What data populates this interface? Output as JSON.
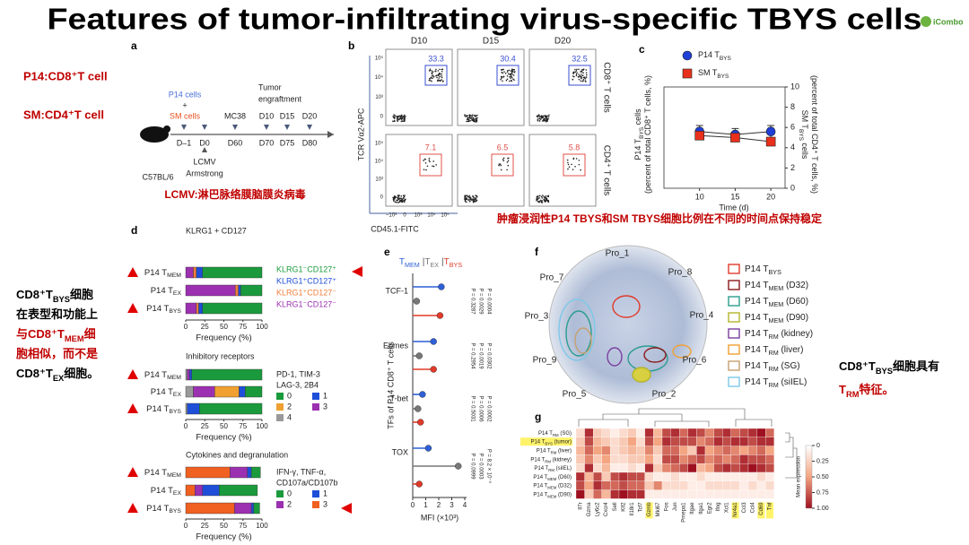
{
  "title": "Features of tumor-infiltrating virus-specific TBYS cells",
  "logo": "iCombo",
  "notes": {
    "p14": "P14:CD8⁺T cell",
    "sm": "SM:CD4⁺T cell",
    "left": [
      {
        "color": "#000000",
        "parts": [
          {
            "t": "CD8⁺T"
          },
          {
            "s": "BYS"
          },
          {
            "t": "细胞"
          }
        ]
      },
      {
        "color": "#000000",
        "parts": [
          {
            "t": "在表型和功能上"
          }
        ]
      },
      {
        "color": "#c00000",
        "parts": [
          {
            "t": "与CD8⁺T"
          },
          {
            "s": "MEM"
          },
          {
            "t": "细"
          }
        ]
      },
      {
        "color": "#c00000",
        "parts": [
          {
            "t": "胞相似，而不是"
          }
        ]
      },
      {
        "color": "#000000",
        "parts": [
          {
            "t": "CD8⁺T"
          },
          {
            "s": "EX"
          },
          {
            "t": "细胞。"
          }
        ]
      }
    ],
    "right": [
      {
        "color": "#000000",
        "parts": [
          {
            "t": "CD8⁺T"
          },
          {
            "s": "BYS"
          },
          {
            "t": "细胞具有"
          }
        ]
      },
      {
        "color": "#c00000",
        "parts": [
          {
            "t": "T"
          },
          {
            "s": "RM"
          },
          {
            "t": "特征。"
          }
        ]
      }
    ]
  },
  "a": {
    "label": "a",
    "mouse": "C57BL/6",
    "p14": "P14 cells",
    "plus": "+",
    "sm": "SM cells",
    "mc38": "MC38",
    "tumor": [
      "Tumor",
      "engraftment"
    ],
    "days": [
      "D–1",
      "D0",
      "D60",
      "D70",
      "D75",
      "D80"
    ],
    "tumor_days": [
      "D10",
      "D15",
      "D20"
    ],
    "lcmv": [
      "LCMV",
      "Armstrong"
    ],
    "caption": "LCMV:淋巴脉络膜脑膜炎病毒"
  },
  "b": {
    "label": "b",
    "columns": [
      "D10",
      "D15",
      "D20"
    ],
    "rows": [
      "CD8⁺ T cells",
      "CD4⁺ T cells"
    ],
    "percents": [
      [
        "33.3",
        "30.4",
        "32.5"
      ],
      [
        "7.1",
        "6.5",
        "5.8"
      ]
    ],
    "yticks": [
      "10⁵",
      "10⁴",
      "10³",
      "0"
    ],
    "xticks": [
      "−10³",
      "0",
      "10³",
      "10⁴",
      "10⁵"
    ],
    "ylabel": "TCR Vα2-APC",
    "xlabel": "CD45.1-FITC",
    "caption": "肿瘤浸润性P14 TBYS和SM TBYS细胞比例在不同的时间点保持稳定"
  },
  "c": {
    "label": "c",
    "type": "line",
    "x": [
      10,
      15,
      20
    ],
    "xlim": [
      5,
      22
    ],
    "xticks": [
      10,
      15,
      20
    ],
    "xlabel": "Time (d)",
    "ylabel": [
      [
        {
          "t": "P14 T"
        },
        {
          "s": "BYS"
        },
        {
          "t": " cells"
        }
      ],
      [
        {
          "t": "(percent of total CD8⁺ T cells, %)"
        }
      ]
    ],
    "y2label": [
      [
        {
          "t": "SM T"
        },
        {
          "s": "BYS"
        },
        {
          "t": " cells"
        }
      ],
      [
        {
          "t": "(percent of total CD4⁺ T cells, %)"
        }
      ]
    ],
    "ylim": [
      0,
      10
    ],
    "y2lim": [
      0,
      10
    ],
    "y2ticks": [
      0,
      2,
      4,
      6,
      8,
      10
    ],
    "series": [
      {
        "name": [
          {
            "t": "P14 T"
          },
          {
            "s": "BYS"
          }
        ],
        "color": "#1f3fd6",
        "marker": "circle",
        "values": [
          5.6,
          5.3,
          5.6
        ],
        "errors": [
          0.6,
          0.6,
          0.6
        ]
      },
      {
        "name": [
          {
            "t": "SM T"
          },
          {
            "s": "BYS"
          }
        ],
        "color": "#e8301c",
        "marker": "square",
        "axis": "y2",
        "values": [
          5.2,
          5.0,
          4.6
        ],
        "errors": [
          0.4,
          0.4,
          0.4
        ]
      }
    ]
  },
  "d": {
    "label": "d",
    "xlim": [
      0,
      100
    ],
    "xticks": [
      0,
      25,
      50,
      75,
      100
    ],
    "xlabel": "Frequency (%)",
    "marked_rows": [
      0,
      2
    ],
    "rows": [
      [
        {
          "t": "P14 T"
        },
        {
          "s": "MEM"
        }
      ],
      [
        {
          "t": "P14 T"
        },
        {
          "s": "EX"
        }
      ],
      [
        {
          "t": "P14 T"
        },
        {
          "s": "BYS"
        }
      ]
    ],
    "groups": [
      {
        "title": "KLRG1 + CD127",
        "subtitle": [],
        "legend_columns": 1,
        "series": [
          {
            "name": "KLRG1⁻CD127⁺",
            "color": "#1a9a3c",
            "values": [
              78,
              28,
              78
            ]
          },
          {
            "name": "KLRG1⁺CD127⁺",
            "color": "#1f4fd8",
            "values": [
              8,
              3,
              5
            ]
          },
          {
            "name": "KLRG1⁺CD127⁻",
            "color": "#f07f3c",
            "values": [
              4,
              4,
              3
            ]
          },
          {
            "name": "KLRG1⁻CD127⁻",
            "color": "#9b30b0",
            "values": [
              10,
              65,
              14
            ]
          }
        ]
      },
      {
        "title": "Inhibitory receptors",
        "subtitle": [
          "PD-1, TIM-3",
          "LAG-3, 2B4"
        ],
        "legend_columns": 2,
        "series": [
          {
            "name": "0",
            "color": "#1a9a3c",
            "values": [
              92,
              22,
              82
            ]
          },
          {
            "name": "1",
            "color": "#1f4fd8",
            "values": [
              3,
              8,
              16
            ]
          },
          {
            "name": "2",
            "color": "#f0a030",
            "values": [
              0,
              32,
              0
            ]
          },
          {
            "name": "3",
            "color": "#9b30b0",
            "values": [
              3,
              28,
              0
            ]
          },
          {
            "name": "4",
            "color": "#999999",
            "values": [
              2,
              10,
              2
            ]
          }
        ]
      },
      {
        "title": "Cytokines and degranulation",
        "subtitle": [
          "IFN-γ, TNF-α,",
          "CD107a/CD107b"
        ],
        "legend_columns": 2,
        "series": [
          {
            "name": "0",
            "color": "#1a9a3c",
            "values": [
              12,
              50,
              8
            ]
          },
          {
            "name": "1",
            "color": "#1f4fd8",
            "values": [
              5,
              22,
              3
            ]
          },
          {
            "name": "2",
            "color": "#9b30b0",
            "values": [
              23,
              10,
              22
            ]
          },
          {
            "name": "3",
            "color": "#f06020",
            "values": [
              58,
              12,
              64
            ]
          }
        ]
      }
    ]
  },
  "e": {
    "label": "e",
    "sep": "|",
    "factors": [
      "TCF-1",
      "Eomes",
      "T-bet",
      "TOX"
    ],
    "xlim": [
      0,
      4
    ],
    "xticks": [
      0,
      1,
      2,
      3,
      4
    ],
    "xlabel": "MFI (×10³)",
    "ylabel": "TFs of P14 CD8⁺ T cells",
    "series": [
      {
        "name": [
          {
            "t": "T"
          },
          {
            "s": "MEM"
          }
        ],
        "color": "#2f5fd6",
        "values": [
          2.2,
          1.6,
          0.75,
          1.2
        ]
      },
      {
        "name": [
          {
            "t": "T"
          },
          {
            "s": "EX"
          }
        ],
        "color": "#777777",
        "values": [
          0.3,
          0.5,
          0.4,
          3.5
        ]
      },
      {
        "name": [
          {
            "t": "T"
          },
          {
            "s": "BYS"
          }
        ],
        "color": "#e03a2a",
        "values": [
          2.1,
          1.6,
          0.6,
          0.5
        ]
      }
    ],
    "pvalues": [
      [
        "P = 0.3287",
        "P = 0.0029",
        "P = 0.0004"
      ],
      [
        "P = 0.2954",
        "P = 0.0019",
        "P = 0.0302"
      ],
      [
        "P = 0.5031",
        "P = 0.0006",
        "P = 0.0002"
      ],
      [
        "P = 0.0999",
        "P = 0.0003",
        "P = 8.2 × 10⁻⁵"
      ]
    ]
  },
  "f": {
    "label": "f",
    "programs": [
      "Pro_1",
      "Pro_2",
      "Pro_3",
      "Pro_4",
      "Pro_5",
      "Pro_6",
      "Pro_7",
      "Pro_8",
      "Pro_9"
    ],
    "legend": [
      {
        "name": [
          {
            "t": "P14 T"
          },
          {
            "s": "BYS"
          }
        ],
        "color": "#e03a2a"
      },
      {
        "name": [
          {
            "t": "P14 T"
          },
          {
            "s": "MEM"
          },
          {
            "t": " (D32)"
          }
        ],
        "color": "#8b1a1a"
      },
      {
        "name": [
          {
            "t": "P14 T"
          },
          {
            "s": "MEM"
          },
          {
            "t": " (D60)"
          }
        ],
        "color": "#2a9d8f"
      },
      {
        "name": [
          {
            "t": "P14 T"
          },
          {
            "s": "MEM"
          },
          {
            "t": " (D90)"
          }
        ],
        "color": "#b5b52a"
      },
      {
        "name": [
          {
            "t": "P14 T"
          },
          {
            "s": "RM"
          },
          {
            "t": " (kidney)"
          }
        ],
        "color": "#7b3fa0"
      },
      {
        "name": [
          {
            "t": "P14 T"
          },
          {
            "s": "RM"
          },
          {
            "t": " (liver)"
          }
        ],
        "color": "#f0a030"
      },
      {
        "name": [
          {
            "t": "P14 T"
          },
          {
            "s": "RM"
          },
          {
            "t": " (SG)"
          }
        ],
        "color": "#c8a070"
      },
      {
        "name": [
          {
            "t": "P14 T"
          },
          {
            "s": "RM"
          },
          {
            "t": " (siIEL)"
          }
        ],
        "color": "#7ec8e8"
      }
    ]
  },
  "g": {
    "label": "g",
    "rows": [
      [
        {
          "t": "P14 T"
        },
        {
          "s": "RM"
        },
        {
          "t": " (SG)"
        }
      ],
      [
        {
          "t": "P14 T"
        },
        {
          "s": "BYS"
        },
        {
          "t": " (tumor)"
        }
      ],
      [
        {
          "t": "P14 T"
        },
        {
          "s": "RM"
        },
        {
          "t": " (liver)"
        }
      ],
      [
        {
          "t": "P14 T"
        },
        {
          "s": "RM"
        },
        {
          "t": " (kidney)"
        }
      ],
      [
        {
          "t": "P14 T"
        },
        {
          "s": "RM"
        },
        {
          "t": " (siIEL)"
        }
      ],
      [
        {
          "t": "P14 T"
        },
        {
          "s": "MEM"
        },
        {
          "t": " (D60)"
        }
      ],
      [
        {
          "t": "P14 T"
        },
        {
          "s": "MEM"
        },
        {
          "t": " (D32)"
        }
      ],
      [
        {
          "t": "P14 T"
        },
        {
          "s": "MEM"
        },
        {
          "t": " (D90)"
        }
      ]
    ],
    "genes": [
      "Il7r",
      "Gzma",
      "Ly6c2",
      "Cxcr4",
      "Sell",
      "Klf2",
      "Il18r1",
      "Tcf7",
      "Gzmb",
      "Mki67",
      "Fos",
      "Jun",
      "Pmepa1",
      "Itgae",
      "Itga1",
      "Egr2",
      "Ifng",
      "Xcl1",
      "Nr4a1",
      "Ccl3",
      "Ccl4",
      "Cd69",
      "Tnf"
    ],
    "highlight_rows": [
      1
    ],
    "highlight_genes": [
      8,
      18,
      21,
      22
    ],
    "values": [
      [
        0.2,
        0.9,
        0.3,
        0.2,
        0.1,
        0.2,
        0.3,
        0.1,
        0.9,
        0.4,
        0.8,
        0.9,
        0.7,
        0.9,
        0.8,
        0.6,
        0.8,
        0.9,
        0.7,
        0.8,
        0.9,
        1.0,
        0.7
      ],
      [
        0.3,
        0.8,
        0.4,
        0.3,
        0.2,
        0.3,
        0.5,
        0.2,
        0.8,
        0.5,
        0.9,
        0.8,
        0.8,
        0.8,
        0.6,
        0.7,
        0.9,
        0.8,
        0.9,
        0.9,
        0.8,
        0.9,
        0.9
      ],
      [
        0.4,
        0.7,
        0.5,
        0.6,
        0.2,
        0.3,
        0.4,
        0.3,
        0.6,
        0.3,
        0.7,
        0.7,
        0.5,
        0.3,
        0.9,
        0.5,
        0.6,
        0.7,
        0.6,
        0.5,
        0.6,
        0.7,
        0.5
      ],
      [
        0.3,
        0.6,
        0.3,
        0.5,
        0.2,
        0.2,
        0.3,
        0.3,
        0.5,
        0.2,
        0.8,
        0.8,
        0.6,
        0.7,
        0.8,
        0.6,
        0.7,
        0.6,
        0.7,
        0.9,
        0.8,
        0.8,
        0.7
      ],
      [
        0.2,
        0.9,
        0.2,
        0.4,
        0.1,
        0.1,
        0.2,
        0.1,
        0.9,
        0.3,
        0.6,
        0.7,
        0.8,
        1.0,
        0.4,
        0.5,
        0.8,
        0.9,
        0.8,
        0.9,
        1.0,
        0.9,
        0.8
      ],
      [
        0.9,
        0.4,
        0.8,
        0.3,
        0.8,
        0.9,
        0.8,
        0.8,
        0.2,
        0.1,
        0.1,
        0.2,
        0.1,
        0.1,
        0.2,
        0.1,
        0.1,
        0.1,
        0.1,
        0.1,
        0.1,
        0.2,
        0.1
      ],
      [
        0.8,
        0.5,
        0.9,
        0.7,
        0.7,
        0.8,
        0.7,
        0.7,
        0.3,
        0.6,
        0.2,
        0.2,
        0.2,
        0.1,
        0.1,
        0.2,
        0.2,
        0.2,
        0.2,
        0.1,
        0.2,
        0.1,
        0.2
      ],
      [
        1.0,
        0.3,
        0.7,
        0.4,
        0.9,
        1.0,
        0.9,
        0.9,
        0.1,
        0.1,
        0.1,
        0.1,
        0.1,
        0.1,
        0.1,
        0.1,
        0.1,
        0.1,
        0.1,
        0.1,
        0.1,
        0.1,
        0.1
      ]
    ],
    "colorbar": {
      "title": "Mean expression",
      "ticks": [
        0,
        0.25,
        {
          "value": 0.5,
          "label": "0.50"
        },
        0.75,
        {
          "value": 1,
          "label": "1.00"
        }
      ]
    }
  }
}
